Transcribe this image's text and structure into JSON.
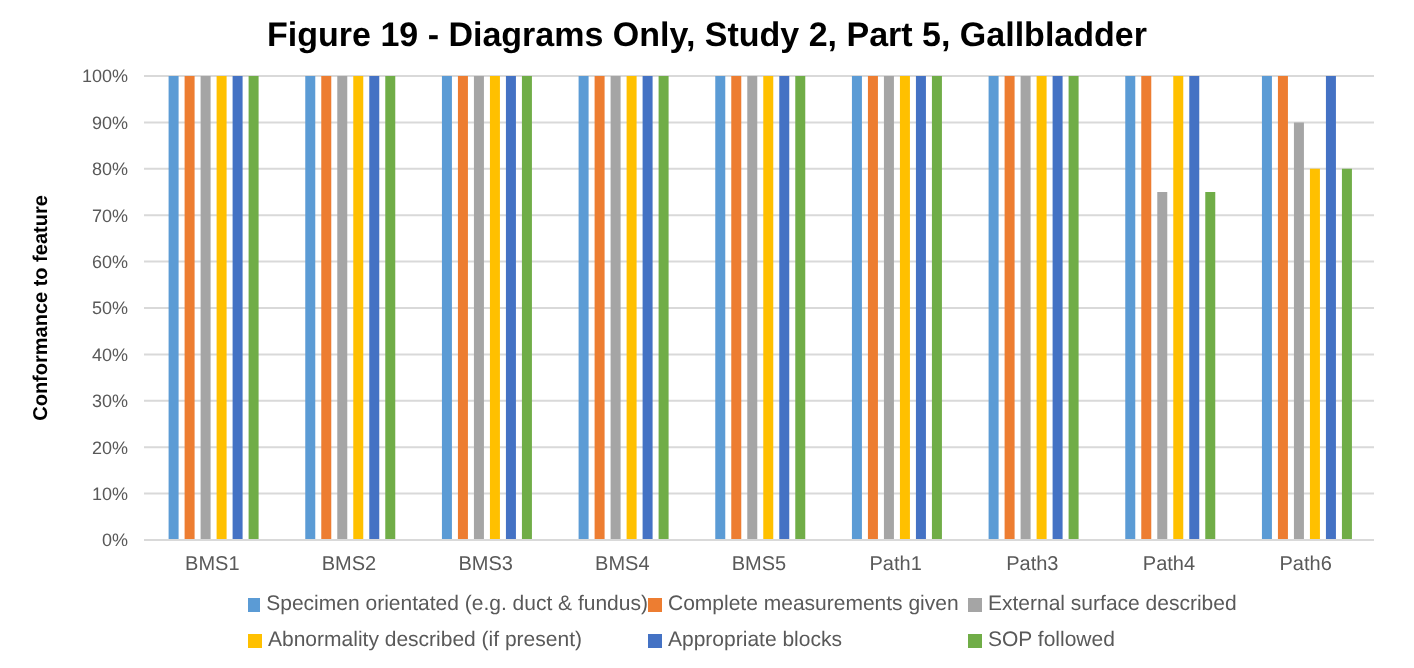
{
  "chart_data": {
    "type": "bar",
    "title": "Figure 19 - Diagrams Only, Study 2, Part 5, Gallbladder",
    "ylabel": "Conformance to feature",
    "categories": [
      "BMS1",
      "BMS2",
      "BMS3",
      "BMS4",
      "BMS5",
      "Path1",
      "Path3",
      "Path4",
      "Path6"
    ],
    "series": [
      {
        "name": "Specimen orientated (e.g. duct & fundus)",
        "color": "#5b9bd5",
        "values": [
          100,
          100,
          100,
          100,
          100,
          100,
          100,
          100,
          100
        ]
      },
      {
        "name": "Complete measurements given",
        "color": "#ed7d31",
        "values": [
          100,
          100,
          100,
          100,
          100,
          100,
          100,
          100,
          100
        ]
      },
      {
        "name": "External surface described",
        "color": "#a5a5a5",
        "values": [
          100,
          100,
          100,
          100,
          100,
          100,
          100,
          75,
          90
        ]
      },
      {
        "name": "Abnormality described (if present)",
        "color": "#ffc000",
        "values": [
          100,
          100,
          100,
          100,
          100,
          100,
          100,
          100,
          80
        ]
      },
      {
        "name": "Appropriate blocks",
        "color": "#4472c4",
        "values": [
          100,
          100,
          100,
          100,
          100,
          100,
          100,
          100,
          100
        ]
      },
      {
        "name": "SOP followed",
        "color": "#70ad47",
        "values": [
          100,
          100,
          100,
          100,
          100,
          100,
          100,
          75,
          80
        ]
      }
    ],
    "ylim": [
      0,
      100
    ],
    "yticks": [
      {
        "value": 0,
        "label": "0%"
      },
      {
        "value": 10,
        "label": "10%"
      },
      {
        "value": 20,
        "label": "20%"
      },
      {
        "value": 30,
        "label": "30%"
      },
      {
        "value": 40,
        "label": "40%"
      },
      {
        "value": 50,
        "label": "50%"
      },
      {
        "value": 60,
        "label": "60%"
      },
      {
        "value": 70,
        "label": "70%"
      },
      {
        "value": 80,
        "label": "80%"
      },
      {
        "value": 90,
        "label": "90%"
      },
      {
        "value": 100,
        "label": "100%"
      }
    ],
    "grid": "y",
    "legend": "bottom"
  }
}
